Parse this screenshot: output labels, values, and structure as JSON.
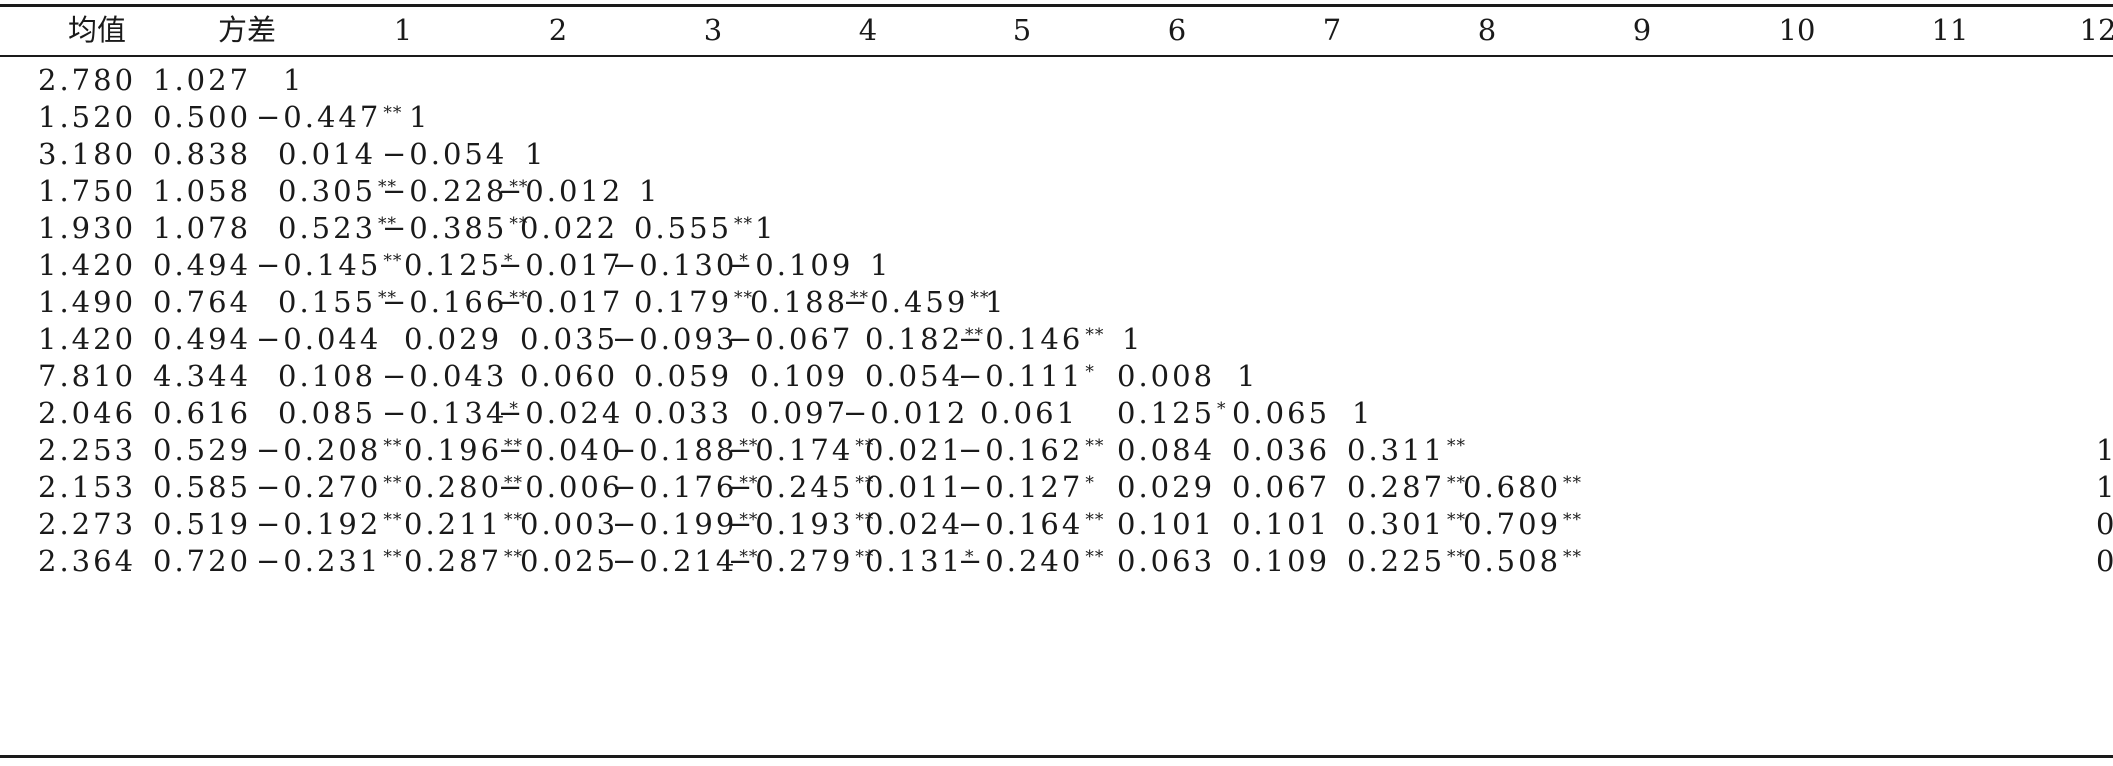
{
  "headers": [
    "均值",
    "方差",
    "1",
    "2",
    "3",
    "4",
    "5",
    "6",
    "7",
    "8",
    "9",
    "10",
    "11",
    "12"
  ],
  "rows": [
    [
      "2.780",
      "1.027",
      "1"
    ],
    [
      "1.520",
      "0.500",
      "−0.447**",
      "1"
    ],
    [
      "3.180",
      "0.838",
      "0.014",
      "−0.054",
      "1"
    ],
    [
      "1.750",
      "1.058",
      "0.305**",
      "−0.228**",
      "−0.012",
      "1"
    ],
    [
      "1.930",
      "1.078",
      "0.523**",
      "−0.385**",
      "0.022",
      "0.555**",
      "1"
    ],
    [
      "1.420",
      "0.494",
      "−0.145**",
      "0.125*",
      "−0.017",
      "−0.130*",
      "−0.109",
      "1"
    ],
    [
      "1.490",
      "0.764",
      "0.155**",
      "−0.166**",
      "−0.017",
      "0.179**",
      "0.188**",
      "−0.459**",
      "1"
    ],
    [
      "1.420",
      "0.494",
      "−0.044",
      "0.029",
      "0.035",
      "−0.093",
      "−0.067",
      "0.182**",
      "−0.146**",
      "1"
    ],
    [
      "7.810",
      "4.344",
      "0.108",
      "−0.043",
      "0.060",
      "0.059",
      "0.109",
      "0.054",
      "−0.111*",
      "0.008",
      "1"
    ],
    [
      "2.046",
      "0.616",
      "0.085",
      "−0.134*",
      "−0.024",
      "0.033",
      "0.097",
      "−0.012",
      "0.061",
      "0.125*",
      "0.065",
      "1"
    ],
    [
      "2.253",
      "0.529",
      "−0.208**",
      "0.196**",
      "−0.040",
      "−0.188**",
      "−0.174**",
      "0.021",
      "−0.162**",
      "0.084",
      "0.036",
      "0.311**",
      "1"
    ],
    [
      "2.153",
      "0.585",
      "−0.270**",
      "0.280**",
      "−0.006",
      "−0.176**",
      "−0.245**",
      "0.011",
      "−0.127*",
      "0.029",
      "0.067",
      "0.287**",
      "0.680**",
      "1"
    ],
    [
      "2.273",
      "0.519",
      "−0.192**",
      "0.211**",
      "0.003",
      "−0.199**",
      "−0.193**",
      "0.024",
      "−0.164**",
      "0.101",
      "0.101",
      "0.301**",
      "0.709**",
      "0"
    ],
    [
      "2.364",
      "0.720",
      "−0.231**",
      "0.287**",
      "0.025",
      "−0.214**",
      "−0.279**",
      "0.131*",
      "−0.240**",
      "0.063",
      "0.109",
      "0.225**",
      "0.508**",
      "0"
    ]
  ]
}
